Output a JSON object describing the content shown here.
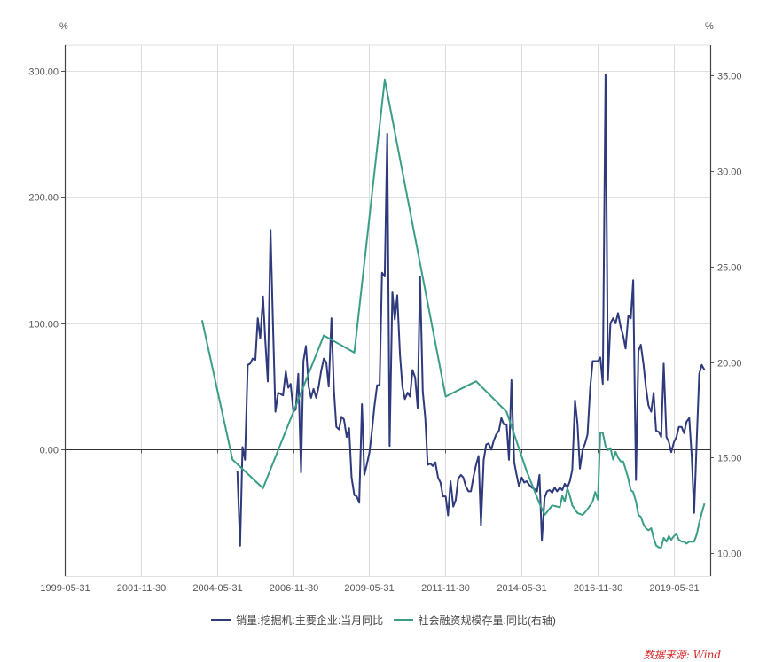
{
  "chart_data": {
    "type": "line",
    "title": "",
    "left_axis": {
      "unit_label": "%",
      "ticks": [
        "300.00",
        "200.00",
        "100.00",
        "0.00"
      ],
      "tick_values": [
        300,
        200,
        100,
        0
      ],
      "ylim": [
        -100,
        320
      ]
    },
    "right_axis": {
      "unit_label": "%",
      "ticks": [
        "35.00",
        "30.00",
        "25.00",
        "20.00",
        "15.00",
        "10.00"
      ],
      "tick_values": [
        35,
        30,
        25,
        20,
        15,
        10
      ],
      "ylim": [
        8.8,
        36.6
      ]
    },
    "x_axis": {
      "tick_labels": [
        "1999-05-31",
        "2001-11-30",
        "2004-05-31",
        "2006-11-30",
        "2009-05-31",
        "2011-11-30",
        "2014-05-31",
        "2016-11-30",
        "2019-05-31"
      ],
      "tick_years": [
        1999.41,
        2001.91,
        2004.41,
        2006.91,
        2009.41,
        2011.91,
        2014.41,
        2016.91,
        2019.41
      ],
      "xlim": [
        1999.41,
        2020.61
      ]
    },
    "grid": true,
    "legend_position": "bottom",
    "series": [
      {
        "name": "销量:挖掘机:主要企业:当月同比",
        "axis": "left",
        "color": "#2e3a7c",
        "points": [
          [
            2005.08,
            -17
          ],
          [
            2005.17,
            -76
          ],
          [
            2005.25,
            2
          ],
          [
            2005.33,
            -8
          ],
          [
            2005.42,
            67
          ],
          [
            2005.5,
            68
          ],
          [
            2005.58,
            72
          ],
          [
            2005.67,
            71
          ],
          [
            2005.75,
            104
          ],
          [
            2005.83,
            88
          ],
          [
            2005.92,
            121
          ],
          [
            2006.0,
            85
          ],
          [
            2006.08,
            54
          ],
          [
            2006.17,
            174
          ],
          [
            2006.25,
            98
          ],
          [
            2006.33,
            30
          ],
          [
            2006.42,
            45
          ],
          [
            2006.5,
            44
          ],
          [
            2006.58,
            43
          ],
          [
            2006.67,
            62
          ],
          [
            2006.75,
            49
          ],
          [
            2006.83,
            52
          ],
          [
            2006.92,
            30
          ],
          [
            2007.0,
            32
          ],
          [
            2007.08,
            60
          ],
          [
            2007.17,
            -18
          ],
          [
            2007.25,
            70
          ],
          [
            2007.33,
            82
          ],
          [
            2007.42,
            50
          ],
          [
            2007.5,
            41
          ],
          [
            2007.58,
            48
          ],
          [
            2007.67,
            41
          ],
          [
            2007.75,
            50
          ],
          [
            2007.83,
            62
          ],
          [
            2007.92,
            72
          ],
          [
            2008.0,
            69
          ],
          [
            2008.08,
            50
          ],
          [
            2008.17,
            104
          ],
          [
            2008.25,
            47
          ],
          [
            2008.33,
            18
          ],
          [
            2008.42,
            16
          ],
          [
            2008.5,
            26
          ],
          [
            2008.58,
            24
          ],
          [
            2008.67,
            10
          ],
          [
            2008.75,
            17
          ],
          [
            2008.83,
            -22
          ],
          [
            2008.92,
            -36
          ],
          [
            2009.0,
            -37
          ],
          [
            2009.08,
            -42
          ],
          [
            2009.17,
            36
          ],
          [
            2009.25,
            -20
          ],
          [
            2009.33,
            -12
          ],
          [
            2009.42,
            -2
          ],
          [
            2009.5,
            15
          ],
          [
            2009.58,
            34
          ],
          [
            2009.67,
            51
          ],
          [
            2009.75,
            51
          ],
          [
            2009.83,
            140
          ],
          [
            2009.92,
            137
          ],
          [
            2010.0,
            250
          ],
          [
            2010.08,
            3
          ],
          [
            2010.17,
            125
          ],
          [
            2010.25,
            103
          ],
          [
            2010.33,
            122
          ],
          [
            2010.42,
            75
          ],
          [
            2010.5,
            50
          ],
          [
            2010.58,
            40
          ],
          [
            2010.67,
            45
          ],
          [
            2010.75,
            42
          ],
          [
            2010.83,
            63
          ],
          [
            2010.92,
            57
          ],
          [
            2011.0,
            33
          ],
          [
            2011.08,
            137
          ],
          [
            2011.17,
            46
          ],
          [
            2011.25,
            25
          ],
          [
            2011.33,
            -12
          ],
          [
            2011.42,
            -11
          ],
          [
            2011.5,
            -13
          ],
          [
            2011.58,
            -10
          ],
          [
            2011.67,
            -22
          ],
          [
            2011.75,
            -26
          ],
          [
            2011.83,
            -37
          ],
          [
            2011.92,
            -37
          ],
          [
            2012.0,
            -52
          ],
          [
            2012.08,
            -25
          ],
          [
            2012.17,
            -45
          ],
          [
            2012.25,
            -40
          ],
          [
            2012.33,
            -23
          ],
          [
            2012.42,
            -20
          ],
          [
            2012.5,
            -22
          ],
          [
            2012.58,
            -29
          ],
          [
            2012.67,
            -33
          ],
          [
            2012.75,
            -33
          ],
          [
            2012.83,
            -22
          ],
          [
            2012.92,
            -12
          ],
          [
            2013.0,
            -5
          ],
          [
            2013.08,
            -60
          ],
          [
            2013.17,
            -8
          ],
          [
            2013.25,
            4
          ],
          [
            2013.33,
            5
          ],
          [
            2013.42,
            0
          ],
          [
            2013.5,
            7
          ],
          [
            2013.58,
            12
          ],
          [
            2013.67,
            15
          ],
          [
            2013.75,
            25
          ],
          [
            2013.83,
            20
          ],
          [
            2013.92,
            20
          ],
          [
            2014.0,
            -8
          ],
          [
            2014.08,
            55
          ],
          [
            2014.17,
            -10
          ],
          [
            2014.25,
            -20
          ],
          [
            2014.33,
            -29
          ],
          [
            2014.42,
            -22
          ],
          [
            2014.5,
            -26
          ],
          [
            2014.58,
            -25
          ],
          [
            2014.67,
            -28
          ],
          [
            2014.75,
            -30
          ],
          [
            2014.83,
            -31
          ],
          [
            2014.92,
            -33
          ],
          [
            2015.0,
            -20
          ],
          [
            2015.08,
            -72
          ],
          [
            2015.17,
            -38
          ],
          [
            2015.25,
            -33
          ],
          [
            2015.33,
            -32
          ],
          [
            2015.42,
            -34
          ],
          [
            2015.5,
            -30
          ],
          [
            2015.58,
            -33
          ],
          [
            2015.67,
            -30
          ],
          [
            2015.75,
            -32
          ],
          [
            2015.83,
            -27
          ],
          [
            2015.92,
            -30
          ],
          [
            2016.0,
            -25
          ],
          [
            2016.08,
            -16
          ],
          [
            2016.17,
            39
          ],
          [
            2016.25,
            20
          ],
          [
            2016.33,
            -15
          ],
          [
            2016.42,
            0
          ],
          [
            2016.5,
            5
          ],
          [
            2016.58,
            12
          ],
          [
            2016.67,
            50
          ],
          [
            2016.75,
            70
          ],
          [
            2016.83,
            70
          ],
          [
            2016.92,
            70
          ],
          [
            2017.0,
            73
          ],
          [
            2017.08,
            52
          ],
          [
            2017.17,
            297
          ],
          [
            2017.25,
            55
          ],
          [
            2017.33,
            100
          ],
          [
            2017.42,
            104
          ],
          [
            2017.5,
            100
          ],
          [
            2017.58,
            108
          ],
          [
            2017.67,
            97
          ],
          [
            2017.75,
            90
          ],
          [
            2017.83,
            80
          ],
          [
            2017.92,
            106
          ],
          [
            2018.0,
            104
          ],
          [
            2018.08,
            134
          ],
          [
            2018.17,
            -24
          ],
          [
            2018.25,
            78
          ],
          [
            2018.33,
            83
          ],
          [
            2018.42,
            67
          ],
          [
            2018.5,
            49
          ],
          [
            2018.58,
            35
          ],
          [
            2018.67,
            30
          ],
          [
            2018.75,
            45
          ],
          [
            2018.83,
            15
          ],
          [
            2018.92,
            14
          ],
          [
            2019.0,
            10
          ],
          [
            2019.08,
            68
          ],
          [
            2019.17,
            10
          ],
          [
            2019.25,
            6
          ],
          [
            2019.33,
            -2
          ],
          [
            2019.42,
            6
          ],
          [
            2019.5,
            10
          ],
          [
            2019.58,
            18
          ],
          [
            2019.67,
            18
          ],
          [
            2019.75,
            13
          ],
          [
            2019.83,
            22
          ],
          [
            2019.92,
            25
          ],
          [
            2020.0,
            -5
          ],
          [
            2020.08,
            -50
          ],
          [
            2020.17,
            10
          ],
          [
            2020.25,
            60
          ],
          [
            2020.33,
            67
          ],
          [
            2020.42,
            63
          ]
        ]
      },
      {
        "name": "社会融资规模存量:同比(右轴)",
        "axis": "right",
        "color": "#3a9e87",
        "points": [
          [
            2003.92,
            22.2
          ],
          [
            2004.92,
            14.9
          ],
          [
            2005.92,
            13.4
          ],
          [
            2007.92,
            21.4
          ],
          [
            2008.92,
            20.5
          ],
          [
            2009.92,
            34.8
          ],
          [
            2011.92,
            18.2
          ],
          [
            2012.92,
            19.0
          ],
          [
            2013.92,
            17.4
          ],
          [
            2014.58,
            14.3
          ],
          [
            2015.0,
            12.6
          ],
          [
            2015.17,
            12.0
          ],
          [
            2015.42,
            12.5
          ],
          [
            2015.67,
            12.4
          ],
          [
            2015.75,
            13.0
          ],
          [
            2015.83,
            12.7
          ],
          [
            2015.92,
            13.4
          ],
          [
            2016.0,
            13.0
          ],
          [
            2016.08,
            12.5
          ],
          [
            2016.25,
            12.1
          ],
          [
            2016.42,
            12.0
          ],
          [
            2016.58,
            12.3
          ],
          [
            2016.75,
            12.7
          ],
          [
            2016.83,
            13.2
          ],
          [
            2016.92,
            12.8
          ],
          [
            2017.0,
            16.3
          ],
          [
            2017.08,
            16.3
          ],
          [
            2017.17,
            15.6
          ],
          [
            2017.25,
            15.4
          ],
          [
            2017.33,
            15.5
          ],
          [
            2017.42,
            14.9
          ],
          [
            2017.5,
            15.3
          ],
          [
            2017.58,
            15.0
          ],
          [
            2017.67,
            14.8
          ],
          [
            2017.75,
            14.8
          ],
          [
            2017.83,
            14.4
          ],
          [
            2017.92,
            13.9
          ],
          [
            2018.0,
            13.3
          ],
          [
            2018.08,
            13.2
          ],
          [
            2018.17,
            12.7
          ],
          [
            2018.25,
            12.0
          ],
          [
            2018.33,
            11.9
          ],
          [
            2018.42,
            11.5
          ],
          [
            2018.5,
            11.3
          ],
          [
            2018.58,
            11.2
          ],
          [
            2018.67,
            11.3
          ],
          [
            2018.75,
            10.8
          ],
          [
            2018.83,
            10.4
          ],
          [
            2018.92,
            10.3
          ],
          [
            2019.0,
            10.3
          ],
          [
            2019.08,
            10.8
          ],
          [
            2019.17,
            10.6
          ],
          [
            2019.25,
            10.9
          ],
          [
            2019.33,
            10.7
          ],
          [
            2019.42,
            10.9
          ],
          [
            2019.5,
            11.0
          ],
          [
            2019.58,
            10.7
          ],
          [
            2019.67,
            10.6
          ],
          [
            2019.75,
            10.6
          ],
          [
            2019.83,
            10.5
          ],
          [
            2019.92,
            10.6
          ],
          [
            2020.0,
            10.6
          ],
          [
            2020.08,
            10.6
          ],
          [
            2020.17,
            11.0
          ],
          [
            2020.25,
            11.6
          ],
          [
            2020.33,
            12.1
          ],
          [
            2020.42,
            12.6
          ]
        ]
      }
    ]
  },
  "legend": {
    "items": [
      {
        "label": "销量:挖掘机:主要企业:当月同比",
        "color": "#2e3a7c"
      },
      {
        "label": "社会融资规模存量:同比(右轴)",
        "color": "#3a9e87"
      }
    ]
  },
  "source_note": "数据来源: Wind"
}
